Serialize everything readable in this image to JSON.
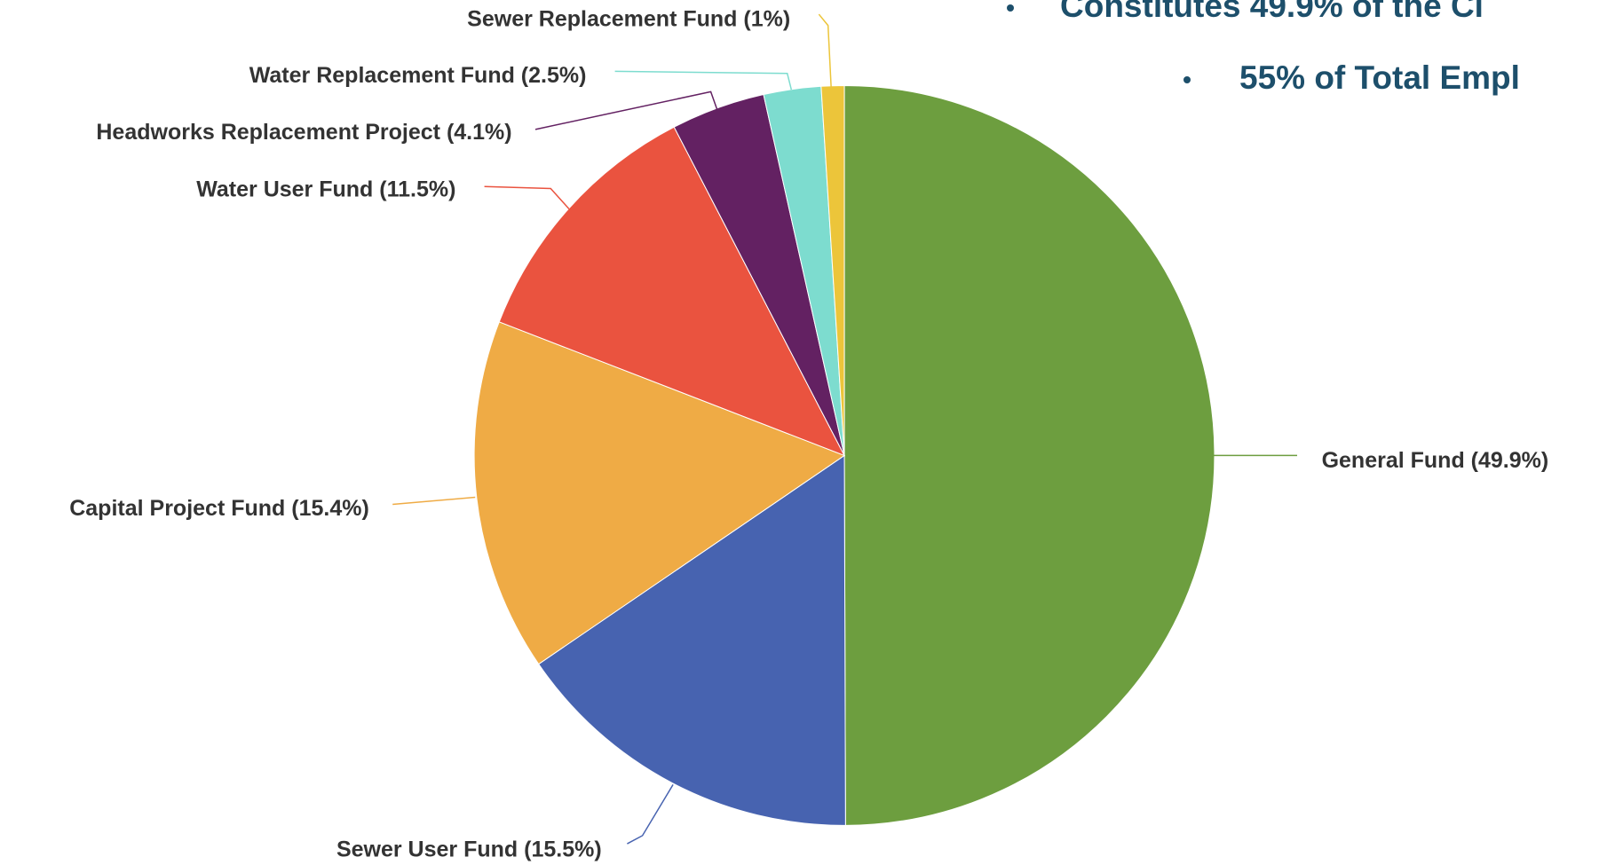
{
  "chart_data": {
    "type": "pie",
    "categories": [
      "General Fund (49.9%)",
      "Sewer User Fund (15.5%)",
      "Capital Project Fund (15.4%)",
      "Water User Fund (11.5%)",
      "Headworks Replacement Project (4.1%)",
      "Water Replacement Fund (2.5%)",
      "Sewer Replacement Fund (1%)"
    ],
    "values": [
      49.9,
      15.5,
      15.4,
      11.5,
      4.1,
      2.5,
      1
    ],
    "colors": [
      "#6d9e3f",
      "#4763b0",
      "#efab45",
      "#ea533f",
      "#632162",
      "#7ddccf",
      "#ecc53a"
    ]
  },
  "bullets": [
    "Constitutes 49.9% of the Ci",
    "55% of Total Empl"
  ]
}
